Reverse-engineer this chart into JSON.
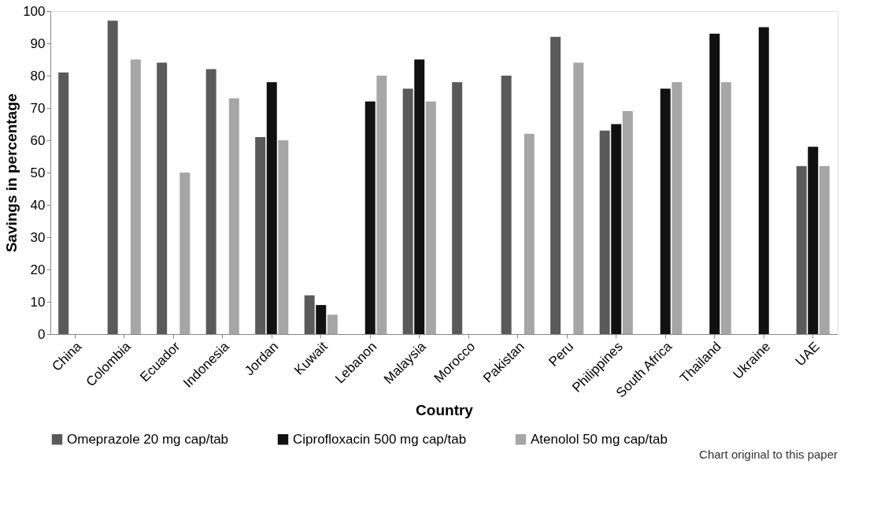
{
  "chart_data": {
    "type": "bar",
    "xlabel": "Country",
    "ylabel": "Savings in percentage",
    "categories": [
      "China",
      "Colombia",
      "Ecuador",
      "Indonesia",
      "Jordan",
      "Kuwait",
      "Lebanon",
      "Malaysia",
      "Morocco",
      "Pakistan",
      "Peru",
      "Philippines",
      "South Africa",
      "Thailand",
      "Ukraine",
      "UAE"
    ],
    "series": [
      {
        "name": "Omeprazole 20 mg cap/tab",
        "color": "#5a5a5a",
        "values": [
          81,
          97,
          84,
          82,
          61,
          12,
          null,
          76,
          78,
          80,
          92,
          63,
          null,
          null,
          null,
          52
        ]
      },
      {
        "name": "Ciprofloxacin 500 mg cap/tab",
        "color": "#111111",
        "values": [
          null,
          null,
          null,
          null,
          78,
          9,
          72,
          85,
          null,
          null,
          null,
          65,
          76,
          93,
          95,
          58
        ]
      },
      {
        "name": "Atenolol 50 mg cap/tab",
        "color": "#a6a6a6",
        "values": [
          null,
          85,
          50,
          73,
          60,
          6,
          80,
          72,
          null,
          62,
          84,
          69,
          78,
          78,
          null,
          52
        ]
      }
    ],
    "ylim": [
      0,
      100
    ],
    "yticks": [
      0,
      10,
      20,
      30,
      40,
      50,
      60,
      70,
      80,
      90,
      100
    ],
    "grid": false,
    "legend": "bottom",
    "annotations": [
      "Chart original to this paper"
    ]
  }
}
